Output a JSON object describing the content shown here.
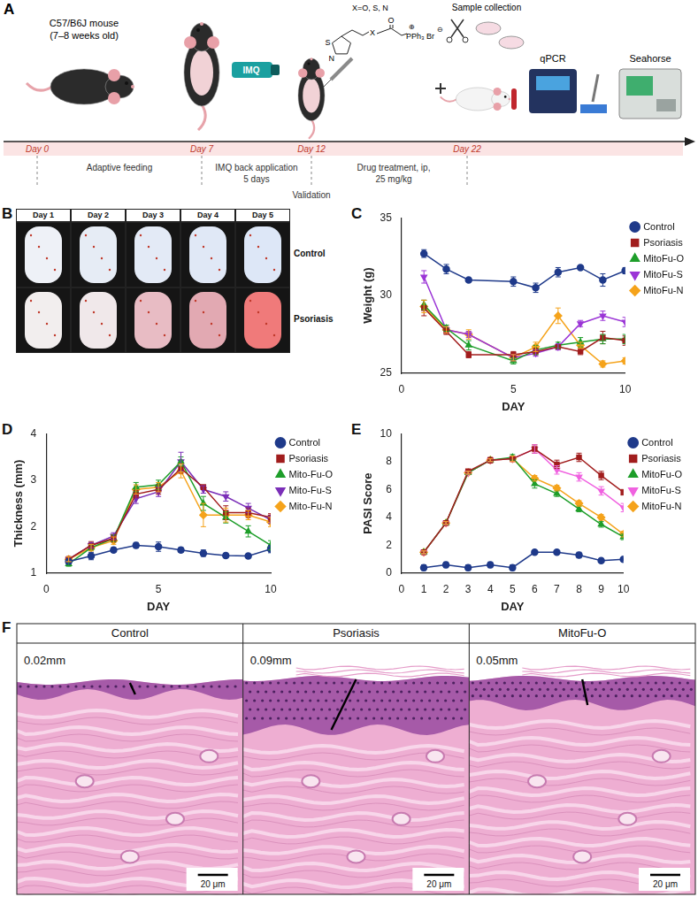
{
  "panel_A": {
    "letter": "A",
    "mouse_label": [
      "C57/B6J mouse",
      "(7–8 weeks old)"
    ],
    "cream_label": "IMQ",
    "compound": {
      "substituent": "X=O, S, N",
      "ring_atoms": [
        "S",
        "N"
      ],
      "linker": "X",
      "carbonyl": "O",
      "cation": "PPh₃",
      "anion": "Br",
      "charges": [
        "⊕",
        "⊖"
      ]
    },
    "sample_label": "Sample collection",
    "instruments": [
      "qPCR",
      "Seahorse"
    ],
    "days": [
      "Day 0",
      "Day 7",
      "Day 12",
      "Day 22"
    ],
    "phases": [
      [
        "Adaptive feeding"
      ],
      [
        "IMQ back application",
        "5 days"
      ],
      [
        "Drug treatment, ip,",
        "25 mg/kg"
      ]
    ],
    "validation": "Validation"
  },
  "panel_B": {
    "letter": "B",
    "columns": [
      "Day 1",
      "Day 2",
      "Day 3",
      "Day 4",
      "Day 5"
    ],
    "rows": [
      "Control",
      "Psoriasis"
    ]
  },
  "chart_data": [
    {
      "type": "line",
      "panel": "C",
      "x_label": "DAY",
      "y_label": "Weight (g)",
      "x": [
        1,
        2,
        3,
        5,
        6,
        7,
        8,
        9,
        10
      ],
      "xlim": [
        0,
        10
      ],
      "xticks": [
        0,
        5,
        10
      ],
      "ylim": [
        25,
        35
      ],
      "yticks": [
        25,
        30,
        35
      ],
      "grid": false,
      "legend": "right",
      "series": [
        {
          "name": "Control",
          "color": "#1f3a8a",
          "marker": "circle",
          "values": [
            32.7,
            31.7,
            31.0,
            30.9,
            30.5,
            31.5,
            31.8,
            31.0,
            31.6
          ],
          "errors": [
            0.25,
            0.3,
            0.1,
            0.3,
            0.3,
            0.3,
            0.1,
            0.4,
            0.2
          ]
        },
        {
          "name": "Psoriasis",
          "color": "#a11d1d",
          "marker": "square",
          "values": [
            29.2,
            27.7,
            26.2,
            26.2,
            26.4,
            26.7,
            26.4,
            27.3,
            27.1
          ],
          "errors": [
            0.5,
            0.2,
            0.2,
            0.2,
            0.2,
            0.1,
            0.2,
            0.4,
            0.3
          ]
        },
        {
          "name": "MitoFu-O",
          "color": "#1e9e2a",
          "marker": "triangle",
          "values": [
            29.4,
            27.9,
            26.8,
            25.8,
            26.5,
            26.8,
            27.0,
            27.2,
            27.2
          ],
          "errors": [
            0.3,
            0.2,
            0.3,
            0.2,
            0.3,
            0.2,
            0.3,
            0.3,
            0.3
          ]
        },
        {
          "name": "MitoFu-S",
          "color": "#9b35d6",
          "marker": "triangle-down",
          "values": [
            31.2,
            27.8,
            27.5,
            26.0,
            26.3,
            26.7,
            28.2,
            28.7,
            28.3
          ],
          "errors": [
            0.4,
            0.2,
            0.2,
            0.2,
            0.2,
            0.2,
            0.2,
            0.3,
            0.3
          ]
        },
        {
          "name": "MitoFu-N",
          "color": "#f5a31b",
          "marker": "diamond",
          "values": [
            29.3,
            27.8,
            27.5,
            26.0,
            26.7,
            28.7,
            26.8,
            25.6,
            25.8
          ],
          "errors": [
            0.4,
            0.2,
            0.3,
            0.2,
            0.3,
            0.5,
            0.2,
            0.2,
            0.2
          ]
        }
      ]
    },
    {
      "type": "line",
      "panel": "D",
      "x_label": "DAY",
      "y_label": "Thickness (mm)",
      "x": [
        1,
        2,
        3,
        4,
        5,
        6,
        7,
        8,
        9,
        10
      ],
      "xlim": [
        0,
        10
      ],
      "xticks": [
        0,
        5,
        10
      ],
      "ylim": [
        1,
        4
      ],
      "yticks": [
        1,
        2,
        3,
        4
      ],
      "grid": false,
      "legend": "right",
      "series": [
        {
          "name": "Control",
          "color": "#1f3a8a",
          "marker": "circle",
          "values": [
            1.25,
            1.37,
            1.5,
            1.6,
            1.57,
            1.5,
            1.43,
            1.38,
            1.37,
            1.52
          ],
          "errors": [
            0.05,
            0.08,
            0.05,
            0.06,
            0.1,
            0.05,
            0.07,
            0.05,
            0.04,
            0.08
          ]
        },
        {
          "name": "Psoriasis",
          "color": "#a11d1d",
          "marker": "square",
          "values": [
            1.3,
            1.6,
            1.75,
            2.7,
            2.8,
            3.25,
            2.85,
            2.3,
            2.3,
            2.2
          ],
          "errors": [
            0.06,
            0.08,
            0.08,
            0.08,
            0.1,
            0.1,
            0.05,
            0.15,
            0.1,
            0.08
          ]
        },
        {
          "name": "Mito-Fu-O",
          "color": "#1e9e2a",
          "marker": "triangle",
          "values": [
            1.2,
            1.55,
            1.75,
            2.85,
            2.9,
            3.4,
            2.5,
            2.2,
            1.9,
            1.6
          ],
          "errors": [
            0.05,
            0.06,
            0.07,
            0.1,
            0.1,
            0.1,
            0.15,
            0.12,
            0.12,
            0.1
          ]
        },
        {
          "name": "Mito-Fu-S",
          "color": "#7b2fb8",
          "marker": "triangle-down",
          "values": [
            1.3,
            1.6,
            1.8,
            2.6,
            2.75,
            3.4,
            2.8,
            2.65,
            2.4,
            2.15
          ],
          "errors": [
            0.05,
            0.06,
            0.07,
            0.1,
            0.1,
            0.2,
            0.08,
            0.1,
            0.1,
            0.08
          ]
        },
        {
          "name": "Mito-Fu-N",
          "color": "#f5a31b",
          "marker": "diamond",
          "values": [
            1.3,
            1.55,
            1.7,
            2.8,
            2.85,
            3.2,
            2.25,
            2.25,
            2.25,
            2.1
          ],
          "errors": [
            0.05,
            0.07,
            0.08,
            0.1,
            0.1,
            0.15,
            0.25,
            0.15,
            0.1,
            0.1
          ]
        }
      ]
    },
    {
      "type": "line",
      "panel": "E",
      "x_label": "DAY",
      "y_label": "PASI Score",
      "x": [
        1,
        2,
        3,
        4,
        5,
        6,
        7,
        8,
        9,
        10
      ],
      "xlim": [
        0,
        10
      ],
      "xticks": [
        0,
        1,
        2,
        3,
        4,
        5,
        6,
        7,
        8,
        9,
        10
      ],
      "ylim": [
        0,
        10
      ],
      "yticks": [
        0,
        2,
        4,
        6,
        8,
        10
      ],
      "grid": false,
      "legend": "right",
      "series": [
        {
          "name": "Control",
          "color": "#1f3a8a",
          "marker": "circle",
          "values": [
            0.4,
            0.6,
            0.4,
            0.6,
            0.4,
            1.5,
            1.5,
            1.3,
            0.9,
            1.0
          ],
          "errors": [
            0.2,
            0.2,
            0.2,
            0.2,
            0.2,
            0.1,
            0.1,
            0.2,
            0.1,
            0.1
          ]
        },
        {
          "name": "Psoriasis",
          "color": "#a11d1d",
          "marker": "square",
          "values": [
            1.5,
            3.6,
            7.3,
            8.1,
            8.2,
            8.9,
            7.8,
            8.3,
            7.0,
            5.8
          ],
          "errors": [
            0.1,
            0.1,
            0.1,
            0.2,
            0.2,
            0.3,
            0.3,
            0.3,
            0.3,
            0.2
          ]
        },
        {
          "name": "MitoFu-O",
          "color": "#1e9e2a",
          "marker": "triangle",
          "values": [
            1.5,
            3.6,
            7.2,
            8.1,
            8.3,
            6.4,
            5.7,
            4.6,
            3.5,
            2.6
          ],
          "errors": [
            0.1,
            0.1,
            0.1,
            0.1,
            0.2,
            0.3,
            0.2,
            0.2,
            0.2,
            0.2
          ]
        },
        {
          "name": "MitoFu-S",
          "color": "#f062e0",
          "marker": "triangle-down",
          "values": [
            1.5,
            3.6,
            7.2,
            8.1,
            8.2,
            8.9,
            7.4,
            6.9,
            5.9,
            4.7
          ],
          "errors": [
            0.1,
            0.1,
            0.1,
            0.1,
            0.2,
            0.3,
            0.3,
            0.3,
            0.3,
            0.3
          ]
        },
        {
          "name": "MitoFu-N",
          "color": "#f5a31b",
          "marker": "diamond",
          "values": [
            1.5,
            3.6,
            7.2,
            8.1,
            8.2,
            6.8,
            6.1,
            5.0,
            4.0,
            2.8
          ],
          "errors": [
            0.1,
            0.1,
            0.1,
            0.1,
            0.2,
            0.2,
            0.2,
            0.2,
            0.2,
            0.2
          ]
        }
      ]
    }
  ],
  "panel_F": {
    "letter": "F",
    "columns": [
      {
        "title": "Control",
        "thickness": "0.02mm",
        "scale_bar": "20 μm"
      },
      {
        "title": "Psoriasis",
        "thickness": "0.09mm",
        "scale_bar": "20 μm"
      },
      {
        "title": "MitoFu-O",
        "thickness": "0.05mm",
        "scale_bar": "20 μm"
      }
    ]
  }
}
